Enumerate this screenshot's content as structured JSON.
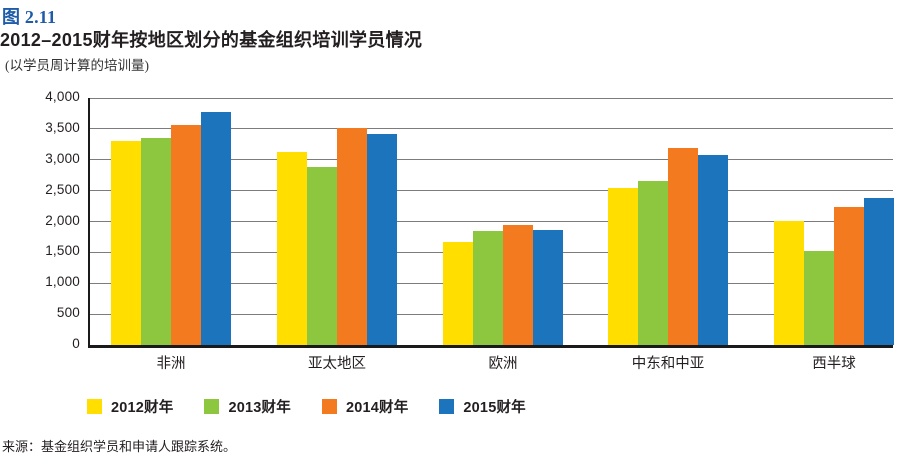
{
  "figure": {
    "label": "图",
    "number": "2.11"
  },
  "title": "2012–2015财年按地区划分的基金组织培训学员情况",
  "subtitle": "(以学员周计算的培训量)",
  "source": "来源：基金组织学员和申请人跟踪系统。",
  "colors": {
    "figure_accent": "#1E5CA8",
    "text": "#231F20",
    "gridline": "#7C7C7C",
    "axis": "#1A1A1A",
    "fy2012": "#FFDE00",
    "fy2013": "#8DC63F",
    "fy2014": "#F47A20",
    "fy2015": "#1C75BC"
  },
  "chart_data": {
    "type": "bar",
    "title": "2012–2015财年按地区划分的基金组织培训学员情况",
    "subtitle": "(以学员周计算的培训量)",
    "categories": [
      "非洲",
      "亚太地区",
      "欧洲",
      "中东和中亚",
      "西半球"
    ],
    "series": [
      {
        "name": "2012财年",
        "color": "#FFDE00",
        "values": [
          3300,
          3120,
          1670,
          2540,
          2010
        ]
      },
      {
        "name": "2013财年",
        "color": "#8DC63F",
        "values": [
          3350,
          2880,
          1850,
          2650,
          1520
        ]
      },
      {
        "name": "2014财年",
        "color": "#F47A20",
        "values": [
          3570,
          3510,
          1950,
          3190,
          2230
        ]
      },
      {
        "name": "2015财年",
        "color": "#1C75BC",
        "values": [
          3780,
          3420,
          1860,
          3080,
          2380
        ]
      }
    ],
    "xlabel": "",
    "ylabel": "",
    "ylim": [
      0,
      4000
    ],
    "ytick_step": 500,
    "ytick_labels": [
      "0",
      "500",
      "1,000",
      "1,500",
      "2,000",
      "2,500",
      "3,000",
      "3,500",
      "4,000"
    ],
    "grid": true,
    "legend_position": "bottom"
  }
}
